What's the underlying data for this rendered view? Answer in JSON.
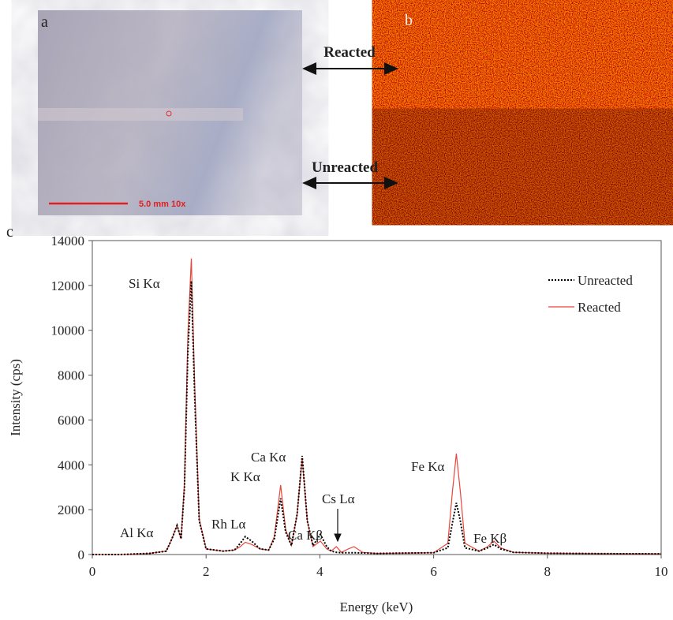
{
  "panels": {
    "a_label": "a",
    "b_label": "b",
    "scale_bar": "5.0 mm 10x",
    "reacted": "Reacted",
    "unreacted": "Unreacted"
  },
  "chart_data": {
    "type": "line",
    "panel_label": "c",
    "xlabel": "Energy (keV)",
    "ylabel": "Intensity (cps)",
    "x": [
      0,
      0.5,
      1.0,
      1.3,
      1.4,
      1.49,
      1.56,
      1.62,
      1.68,
      1.74,
      1.8,
      1.88,
      2.0,
      2.3,
      2.5,
      2.6,
      2.69,
      2.8,
      2.95,
      3.1,
      3.2,
      3.31,
      3.4,
      3.5,
      3.6,
      3.69,
      3.78,
      3.88,
      4.01,
      4.12,
      4.2,
      4.29,
      4.38,
      4.5,
      4.6,
      4.75,
      5.0,
      6.0,
      6.25,
      6.33,
      6.4,
      6.47,
      6.55,
      6.8,
      6.95,
      7.06,
      7.18,
      7.4,
      8,
      9,
      10
    ],
    "series": [
      {
        "name": "Unreacted",
        "color": "#000000",
        "style": "dotted",
        "values": [
          0,
          0,
          50,
          150,
          700,
          1300,
          700,
          3000,
          9000,
          12200,
          7000,
          1500,
          250,
          150,
          200,
          500,
          800,
          600,
          250,
          200,
          700,
          2500,
          1000,
          400,
          1800,
          4400,
          1500,
          400,
          900,
          350,
          150,
          100,
          80,
          80,
          80,
          70,
          50,
          80,
          300,
          1400,
          2300,
          1500,
          300,
          150,
          300,
          450,
          250,
          100,
          60,
          40,
          30
        ]
      },
      {
        "name": "Reacted",
        "color": "#e8453a",
        "style": "solid",
        "values": [
          0,
          0,
          50,
          150,
          700,
          1300,
          700,
          3200,
          9800,
          13200,
          7500,
          1600,
          250,
          150,
          200,
          350,
          550,
          450,
          250,
          200,
          800,
          3100,
          1100,
          400,
          1800,
          4300,
          1500,
          350,
          600,
          250,
          150,
          350,
          100,
          250,
          350,
          100,
          50,
          80,
          500,
          2800,
          4500,
          2800,
          500,
          150,
          350,
          600,
          300,
          100,
          60,
          40,
          30
        ]
      }
    ],
    "annotations": [
      "Si Kα",
      "Al Kα",
      "Rh Lα",
      "K Kα",
      "Ca Kα",
      "Ca Kβ",
      "Cs Lα",
      "Fe Kα",
      "Fe Kβ"
    ],
    "xlim": [
      0,
      10
    ],
    "xticks": [
      0,
      2,
      4,
      6,
      8,
      10
    ],
    "ylim": [
      0,
      14000
    ],
    "yticks": [
      0,
      2000,
      4000,
      6000,
      8000,
      10000,
      12000,
      14000
    ],
    "legend": "upper right"
  }
}
